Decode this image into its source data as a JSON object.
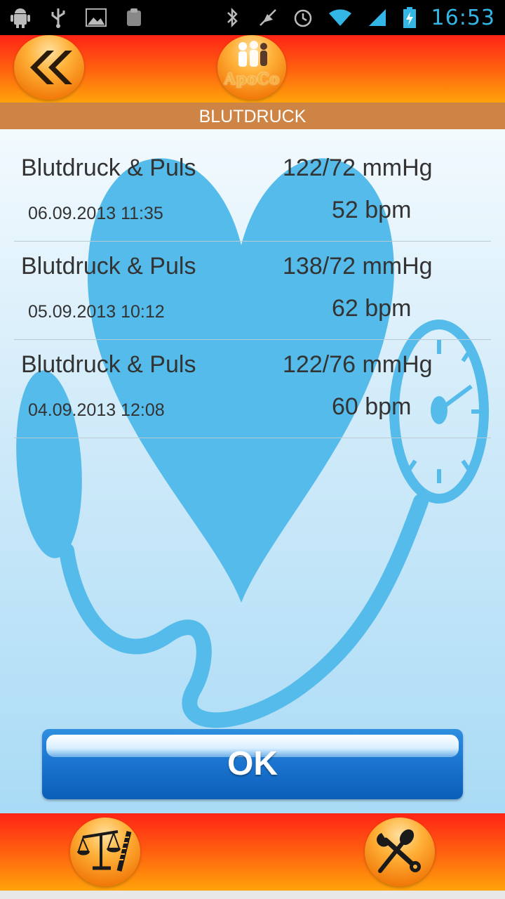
{
  "status_bar": {
    "time": "16:53",
    "left_icons": [
      "android-debug-icon",
      "usb-icon",
      "image-icon",
      "clipboard-icon"
    ],
    "right_icons": [
      "bluetooth-icon",
      "mute-icon",
      "alarm-icon",
      "wifi-icon",
      "signal-icon",
      "battery-charging-icon"
    ]
  },
  "header": {
    "back_icon": "double-chevron-left-icon",
    "logo_text": "ApoCo",
    "subtitle": "BLUTDRUCK"
  },
  "measurements": [
    {
      "title": "Blutdruck & Puls",
      "date": "06.09.2013 11:35",
      "bp": "122/72 mmHg",
      "pulse": "52 bpm"
    },
    {
      "title": "Blutdruck & Puls",
      "date": "05.09.2013 10:12",
      "bp": "138/72 mmHg",
      "pulse": "62 bpm"
    },
    {
      "title": "Blutdruck & Puls",
      "date": "04.09.2013 12:08",
      "bp": "122/76 mmHg",
      "pulse": "60 bpm"
    }
  ],
  "ok_button": {
    "label": "OK"
  },
  "footer": {
    "left_icon": "scale-icon",
    "right_icon": "tools-icon"
  },
  "colors": {
    "header_top": "#ff2416",
    "header_bottom": "#ffa30a",
    "subtitle_bar": "#cd8445",
    "accent_blue": "#1a73cf",
    "art_blue": "#55bbea",
    "status_time": "#33b5e5"
  }
}
